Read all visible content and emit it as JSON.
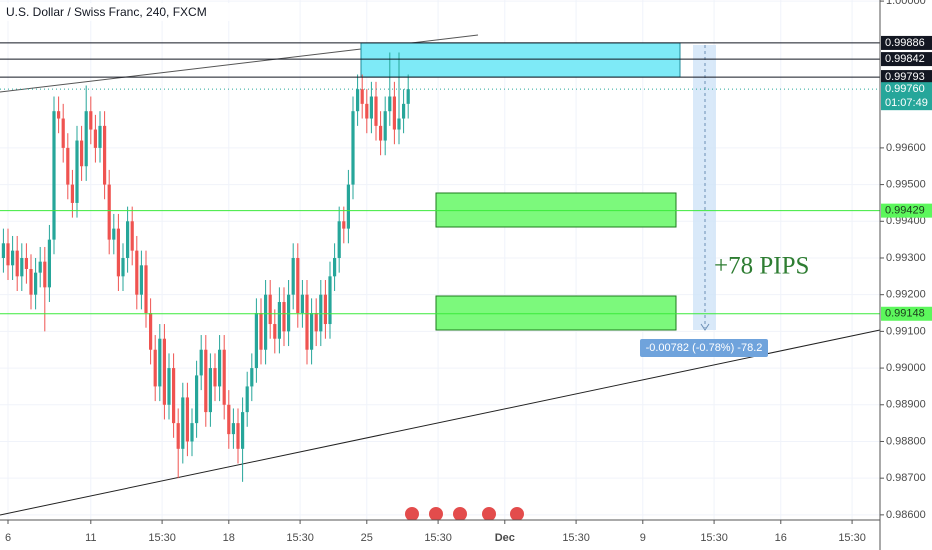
{
  "chart_data": {
    "type": "candlestick",
    "title": "U.S. Dollar / Swiss Franc, 240, FXCM",
    "open": [
      0.993,
      0.9934,
      0.9928,
      0.9932,
      0.9925,
      0.993,
      0.9927,
      0.992,
      0.9926,
      0.9929,
      0.9922,
      0.9935,
      0.997,
      0.9968,
      0.996,
      0.995,
      0.9945,
      0.9962,
      0.9955,
      0.997,
      0.9965,
      0.996,
      0.9966,
      0.995,
      0.9935,
      0.9938,
      0.9925,
      0.993,
      0.994,
      0.9932,
      0.992,
      0.9928,
      0.9915,
      0.9905,
      0.9895,
      0.9908,
      0.989,
      0.99,
      0.9885,
      0.9878,
      0.9892,
      0.988,
      0.9885,
      0.9898,
      0.9905,
      0.9888,
      0.99,
      0.9895,
      0.9905,
      0.989,
      0.9882,
      0.9885,
      0.9878,
      0.9888,
      0.9895,
      0.99,
      0.9915,
      0.9905,
      0.992,
      0.9912,
      0.9908,
      0.9918,
      0.991,
      0.992,
      0.993,
      0.9915,
      0.992,
      0.9905,
      0.9915,
      0.991,
      0.992,
      0.9912,
      0.9925,
      0.993,
      0.994,
      0.9938,
      0.995,
      0.997,
      0.9976,
      0.9972,
      0.9968,
      0.9974,
      0.9966,
      0.9962,
      0.997,
      0.9974,
      0.9965,
      0.9968,
      0.9972
    ],
    "high": [
      0.9938,
      0.9938,
      0.9936,
      0.9936,
      0.9934,
      0.9934,
      0.9931,
      0.993,
      0.9933,
      0.9933,
      0.9939,
      0.9974,
      0.9974,
      0.9972,
      0.9964,
      0.9954,
      0.9966,
      0.9966,
      0.9977,
      0.9974,
      0.9969,
      0.997,
      0.997,
      0.9954,
      0.9942,
      0.9942,
      0.9934,
      0.9944,
      0.9944,
      0.9936,
      0.9932,
      0.9932,
      0.9919,
      0.9909,
      0.9912,
      0.9912,
      0.9904,
      0.9904,
      0.9889,
      0.9896,
      0.9896,
      0.9889,
      0.9902,
      0.9909,
      0.9909,
      0.9904,
      0.9904,
      0.9909,
      0.9909,
      0.9894,
      0.9889,
      0.9889,
      0.9892,
      0.9899,
      0.9904,
      0.9919,
      0.9919,
      0.9924,
      0.9924,
      0.9916,
      0.9922,
      0.9922,
      0.9924,
      0.9934,
      0.9934,
      0.9924,
      0.9924,
      0.9919,
      0.9919,
      0.9924,
      0.9924,
      0.9929,
      0.9934,
      0.9944,
      0.9944,
      0.9954,
      0.9974,
      0.998,
      0.998,
      0.9976,
      0.9978,
      0.9978,
      0.997,
      0.9974,
      0.9986,
      0.9978,
      0.9986,
      0.9976,
      0.998
    ],
    "low": [
      0.9926,
      0.9924,
      0.9924,
      0.9921,
      0.9921,
      0.9923,
      0.9916,
      0.9916,
      0.9922,
      0.991,
      0.9918,
      0.9931,
      0.9964,
      0.9956,
      0.9946,
      0.9941,
      0.9941,
      0.9951,
      0.9951,
      0.9961,
      0.9956,
      0.9956,
      0.9946,
      0.9931,
      0.9931,
      0.9921,
      0.9921,
      0.9926,
      0.9928,
      0.9916,
      0.9916,
      0.9911,
      0.9901,
      0.9891,
      0.9891,
      0.9886,
      0.9886,
      0.9881,
      0.987,
      0.9874,
      0.9876,
      0.9876,
      0.9881,
      0.9894,
      0.9884,
      0.9884,
      0.9891,
      0.9891,
      0.9886,
      0.9878,
      0.9878,
      0.9874,
      0.9869,
      0.9884,
      0.9891,
      0.9896,
      0.9901,
      0.9901,
      0.9908,
      0.9904,
      0.9904,
      0.9906,
      0.9906,
      0.9916,
      0.9911,
      0.9911,
      0.9901,
      0.9901,
      0.9906,
      0.9906,
      0.9908,
      0.9908,
      0.9921,
      0.9926,
      0.9934,
      0.9934,
      0.9946,
      0.9966,
      0.9968,
      0.9964,
      0.9964,
      0.9962,
      0.9958,
      0.9958,
      0.9966,
      0.9961,
      0.9961,
      0.9964,
      0.9968
    ],
    "close": [
      0.9934,
      0.9928,
      0.9932,
      0.9925,
      0.993,
      0.9927,
      0.992,
      0.9926,
      0.9929,
      0.9922,
      0.9935,
      0.997,
      0.9968,
      0.996,
      0.995,
      0.9945,
      0.9962,
      0.9955,
      0.997,
      0.9965,
      0.996,
      0.9966,
      0.995,
      0.9935,
      0.9938,
      0.9925,
      0.993,
      0.994,
      0.9932,
      0.992,
      0.9928,
      0.9915,
      0.9905,
      0.9895,
      0.9908,
      0.989,
      0.99,
      0.9885,
      0.9878,
      0.9892,
      0.988,
      0.9885,
      0.9898,
      0.9905,
      0.9888,
      0.99,
      0.9895,
      0.9905,
      0.989,
      0.9882,
      0.9885,
      0.9878,
      0.9888,
      0.9895,
      0.99,
      0.9915,
      0.9905,
      0.992,
      0.9912,
      0.9908,
      0.9918,
      0.991,
      0.992,
      0.993,
      0.9915,
      0.992,
      0.9905,
      0.9915,
      0.991,
      0.992,
      0.9912,
      0.9925,
      0.993,
      0.994,
      0.9938,
      0.995,
      0.997,
      0.9976,
      0.9972,
      0.9968,
      0.9974,
      0.9966,
      0.9962,
      0.997,
      0.9974,
      0.9965,
      0.9968,
      0.9972,
      0.9976
    ],
    "up_color": "#26a69a",
    "down_color": "#ef5350",
    "grid": true,
    "xlim": [
      -0.74,
      190.57
    ],
    "xticks": [
      {
        "value": 1,
        "label": "6"
      },
      {
        "value": 19,
        "label": "11"
      },
      {
        "value": 34.5,
        "label": "15:30"
      },
      {
        "value": 49,
        "label": "18"
      },
      {
        "value": 64.5,
        "label": "15:30"
      },
      {
        "value": 79,
        "label": "25"
      },
      {
        "value": 94.5,
        "label": "15:30"
      },
      {
        "value": 109,
        "label": "Dec"
      },
      {
        "value": 124.5,
        "label": "15:30"
      },
      {
        "value": 139,
        "label": "9"
      },
      {
        "value": 154.5,
        "label": "15:30"
      },
      {
        "value": 169,
        "label": "16"
      },
      {
        "value": 184.5,
        "label": "15:30"
      }
    ],
    "ylim": [
      0.98586,
      1.00003
    ],
    "yticks": [
      {
        "value": 1,
        "label": "1.00000"
      },
      {
        "value": 0.996,
        "label": "0.99600"
      },
      {
        "value": 0.995,
        "label": "0.99500"
      },
      {
        "value": 0.994,
        "label": "0.99400"
      },
      {
        "value": 0.993,
        "label": "0.99300"
      },
      {
        "value": 0.992,
        "label": "0.99200"
      },
      {
        "value": 0.991,
        "label": "0.99100"
      },
      {
        "value": 0.99,
        "label": "0.99000"
      },
      {
        "value": 0.989,
        "label": "0.98900"
      },
      {
        "value": 0.988,
        "label": "0.98800"
      },
      {
        "value": 0.987,
        "label": "0.98700"
      },
      {
        "value": 0.986,
        "label": "0.98600"
      }
    ],
    "price_lines": [
      {
        "value": 0.99886,
        "color": "#131722"
      },
      {
        "value": 0.99842,
        "color": "#131722"
      },
      {
        "value": 0.99793,
        "color": "#131722"
      },
      {
        "value": 0.99429,
        "color": "#3bea3b"
      },
      {
        "value": 0.99148,
        "color": "#3bea3b"
      }
    ],
    "last_price": {
      "value": 0.9976,
      "label": "0.99760"
    },
    "countdown": "01:07:49",
    "annotations": {
      "pips": "+78 PIPS",
      "measure": "-0.00782 (-0.78%) -78.2"
    }
  }
}
